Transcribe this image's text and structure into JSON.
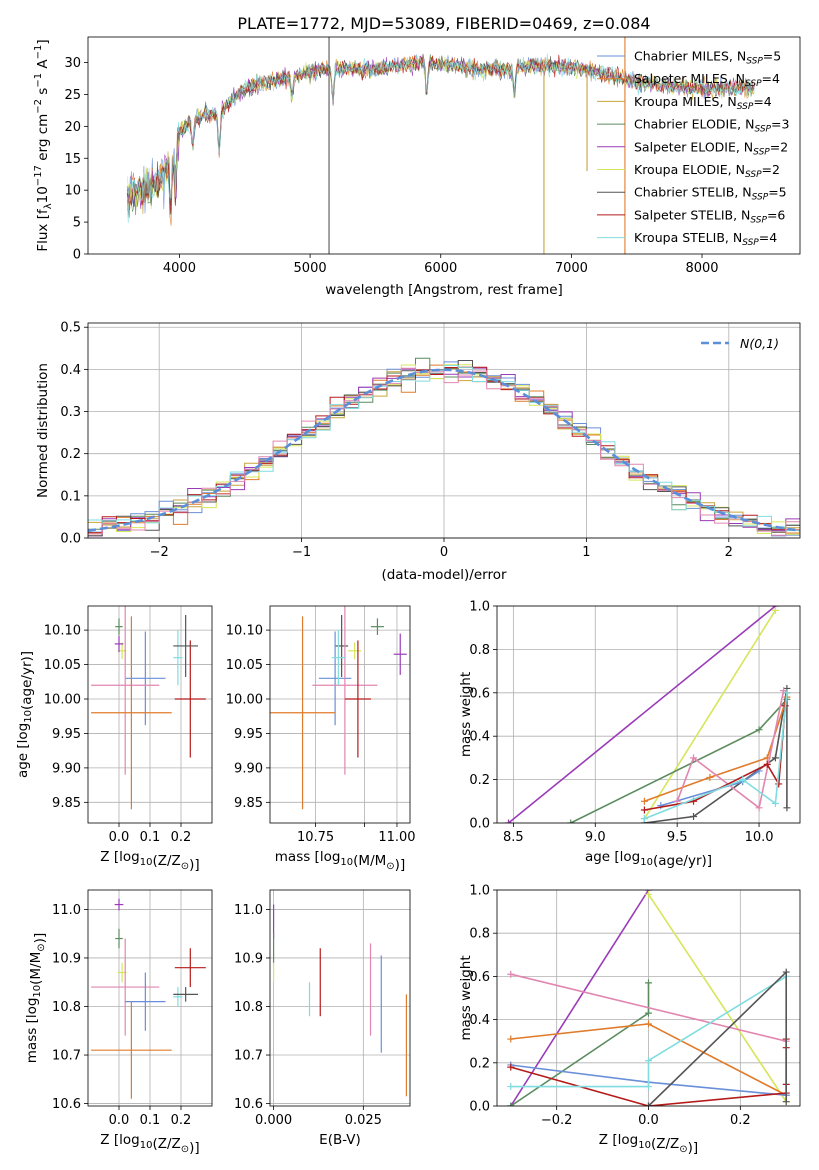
{
  "figure_title": "PLATE=1772, MJD=53089, FIBERID=0469, z=0.084",
  "colors": {
    "Chabrier MILES": "#6a8fd9",
    "Salpeter MILES": "#e07b2b",
    "Kroupa MILES": "#c9a23a",
    "Chabrier ELODIE": "#5b8c5f",
    "Salpeter ELODIE": "#9a3bb8",
    "Kroupa ELODIE": "#d6e65a",
    "Chabrier STELIB": "#555555",
    "Salpeter STELIB": "#b51a1a",
    "Kroupa STELIB": "#7fdde0",
    "pink": "#e286b0",
    "normal": "#5b8fd9"
  },
  "chart_data": [
    {
      "id": "spectrum",
      "type": "line",
      "xlabel": "wavelength [Angstrom, rest frame]",
      "ylabel": "Flux [f_λ10^-17 erg cm^-2 s^-1 A^-1]",
      "xlim": [
        3300,
        8750
      ],
      "ylim": [
        0,
        34
      ],
      "xticks": [
        4000,
        5000,
        6000,
        7000,
        8000
      ],
      "yticks": [
        0,
        5,
        10,
        15,
        20,
        25,
        30
      ],
      "grid": false,
      "legend_position": "right",
      "legend": [
        {
          "base": "Chabrier MILES, N",
          "sub": "SSP",
          "tail": "=5"
        },
        {
          "base": "Salpeter MILES, N",
          "sub": "SSP",
          "tail": "=4"
        },
        {
          "base": "Kroupa MILES, N",
          "sub": "SSP",
          "tail": "=4"
        },
        {
          "base": "Chabrier ELODIE, N",
          "sub": "SSP",
          "tail": "=3"
        },
        {
          "base": "Salpeter ELODIE, N",
          "sub": "SSP",
          "tail": "=2"
        },
        {
          "base": "Kroupa ELODIE, N",
          "sub": "SSP",
          "tail": "=2"
        },
        {
          "base": "Chabrier STELIB, N",
          "sub": "SSP",
          "tail": "=5"
        },
        {
          "base": "Salpeter STELIB, N",
          "sub": "SSP",
          "tail": "=6"
        },
        {
          "base": "Kroupa STELIB, N",
          "sub": "SSP",
          "tail": "=4"
        }
      ],
      "continuum": [
        [
          3600,
          9
        ],
        [
          3700,
          10
        ],
        [
          3800,
          11
        ],
        [
          3900,
          13
        ],
        [
          3950,
          17
        ],
        [
          4000,
          19
        ],
        [
          4100,
          21
        ],
        [
          4200,
          22
        ],
        [
          4300,
          22
        ],
        [
          4400,
          24
        ],
        [
          4500,
          26
        ],
        [
          4700,
          27
        ],
        [
          4900,
          28
        ],
        [
          5100,
          29
        ],
        [
          5300,
          29
        ],
        [
          5500,
          29
        ],
        [
          5700,
          29.5
        ],
        [
          5900,
          30
        ],
        [
          6100,
          29.5
        ],
        [
          6300,
          29
        ],
        [
          6500,
          29
        ],
        [
          6700,
          29.5
        ],
        [
          6900,
          29.5
        ],
        [
          7100,
          29
        ],
        [
          7300,
          28
        ],
        [
          7500,
          27
        ],
        [
          7700,
          26.5
        ],
        [
          7900,
          26
        ],
        [
          8100,
          26
        ],
        [
          8300,
          26
        ],
        [
          8400,
          26
        ]
      ],
      "absorption_lines": [
        [
          3934,
          9
        ],
        [
          3969,
          8
        ],
        [
          4102,
          4
        ],
        [
          4305,
          6
        ],
        [
          4861,
          3
        ],
        [
          5175,
          5
        ],
        [
          5893,
          5
        ],
        [
          6563,
          4
        ]
      ],
      "spikes": [
        {
          "x": 5145,
          "y0": 0,
          "y1": 34,
          "series": "Chabrier STELIB"
        },
        {
          "x": 6790,
          "y0": 0,
          "y1": 29,
          "series": "Kroupa MILES"
        },
        {
          "x": 7410,
          "y0": 0,
          "y1": 34,
          "series": "Salpeter MILES"
        },
        {
          "x": 7120,
          "y0": 13,
          "y1": 29,
          "series": "Kroupa MILES"
        }
      ]
    },
    {
      "id": "residuals",
      "type": "histogram",
      "xlabel": "(data-model)/error",
      "ylabel": "Normed distribution",
      "xlim": [
        -2.5,
        2.5
      ],
      "ylim": [
        0,
        0.51
      ],
      "xticks": [
        -2,
        -1,
        0,
        1,
        2
      ],
      "yticks": [
        0.0,
        0.1,
        0.2,
        0.3,
        0.4,
        0.5
      ],
      "grid": true,
      "bin_width": 0.1,
      "legend": "N(0,1)",
      "reference": {
        "type": "normal",
        "mean": 0,
        "sigma": 1
      }
    },
    {
      "id": "age_vs_Z",
      "type": "errorbar",
      "xlabel": "Z [log10(Z/Z⊙)]",
      "ylabel": "age [log10(age/yr)]",
      "xlim": [
        -0.1,
        0.3
      ],
      "ylim": [
        9.82,
        10.135
      ],
      "xticks": [
        0.0,
        0.1,
        0.2
      ],
      "yticks": [
        9.85,
        9.9,
        9.95,
        10.0,
        10.05,
        10.1
      ],
      "grid": true,
      "points": [
        {
          "series": "Chabrier ELODIE",
          "x": 0.0,
          "xerr": 0.012,
          "y": 10.105,
          "yerr": 0.012
        },
        {
          "series": "Kroupa ELODIE",
          "x": 0.01,
          "xerr": 0.014,
          "y": 10.07,
          "yerr": 0.012
        },
        {
          "series": "Salpeter ELODIE",
          "x": 0.0,
          "xerr": 0.014,
          "y": 10.08,
          "yerr": 0.012
        },
        {
          "series": "Chabrier MILES",
          "x": 0.085,
          "xerr": 0.065,
          "y": 10.03,
          "yerr": 0.068
        },
        {
          "series": "pink",
          "x": 0.02,
          "xerr": 0.11,
          "y": 10.02,
          "yerr": 0.13
        },
        {
          "series": "Salpeter MILES",
          "x": 0.04,
          "xerr": 0.13,
          "y": 9.98,
          "yerr": 0.14
        },
        {
          "series": "Salpeter STELIB",
          "x": 0.23,
          "xerr": 0.05,
          "y": 10.0,
          "yerr": 0.085
        },
        {
          "series": "Kroupa STELIB",
          "x": 0.19,
          "xerr": 0.015,
          "y": 10.06,
          "yerr": 0.04
        },
        {
          "series": "Chabrier STELIB",
          "x": 0.215,
          "xerr": 0.04,
          "y": 10.077,
          "yerr": 0.045
        }
      ]
    },
    {
      "id": "age_vs_mass",
      "type": "errorbar",
      "xlabel": "mass [log10(M/M⊙)]",
      "ylabel": "",
      "xlim": [
        10.61,
        11.04
      ],
      "ylim": [
        9.82,
        10.135
      ],
      "xticks": [
        10.75,
        10.9,
        11.0
      ],
      "xticklabels": [
        "10.75",
        "",
        "11.00"
      ],
      "yticks": [
        9.85,
        9.9,
        9.95,
        10.0,
        10.05,
        10.1
      ],
      "grid": true,
      "points": [
        {
          "series": "Chabrier ELODIE",
          "x": 10.94,
          "xerr": 0.02,
          "y": 10.105,
          "yerr": 0.012
        },
        {
          "series": "Salpeter ELODIE",
          "x": 11.01,
          "xerr": 0.02,
          "y": 10.065,
          "yerr": 0.03
        },
        {
          "series": "Kroupa ELODIE",
          "x": 10.87,
          "xerr": 0.02,
          "y": 10.07,
          "yerr": 0.012
        },
        {
          "series": "Chabrier STELIB",
          "x": 10.83,
          "xerr": 0.02,
          "y": 10.077,
          "yerr": 0.045
        },
        {
          "series": "Chabrier MILES",
          "x": 10.81,
          "xerr": 0.05,
          "y": 10.03,
          "yerr": 0.068
        },
        {
          "series": "pink",
          "x": 10.84,
          "xerr": 0.1,
          "y": 10.02,
          "yerr": 0.13
        },
        {
          "series": "Salpeter MILES",
          "x": 10.71,
          "xerr": 0.1,
          "y": 9.98,
          "yerr": 0.14
        },
        {
          "series": "Salpeter STELIB",
          "x": 10.88,
          "xerr": 0.04,
          "y": 10.0,
          "yerr": 0.085
        },
        {
          "series": "Kroupa STELIB",
          "x": 10.82,
          "xerr": 0.02,
          "y": 10.06,
          "yerr": 0.04
        }
      ]
    },
    {
      "id": "weight_vs_age",
      "type": "line",
      "xlabel": "age [log10(age/yr)]",
      "ylabel": "mass weight",
      "xlim": [
        8.4,
        10.25
      ],
      "ylim": [
        0,
        1
      ],
      "xticks": [
        8.5,
        9.0,
        9.5,
        10.0
      ],
      "yticks": [
        0.0,
        0.2,
        0.4,
        0.6,
        0.8,
        1.0
      ],
      "grid": true,
      "series": [
        {
          "name": "Salpeter ELODIE",
          "x": [
            8.47,
            10.1
          ],
          "y": [
            0.0,
            1.0
          ]
        },
        {
          "name": "Kroupa ELODIE",
          "x": [
            9.3,
            10.1
          ],
          "y": [
            0.02,
            0.98
          ]
        },
        {
          "name": "Chabrier ELODIE",
          "x": [
            8.85,
            10.0,
            10.17
          ],
          "y": [
            0.0,
            0.43,
            0.57
          ]
        },
        {
          "name": "Chabrier STELIB",
          "x": [
            9.3,
            9.6,
            10.1,
            10.17,
            10.17
          ],
          "y": [
            0.0,
            0.03,
            0.3,
            0.62,
            0.07
          ]
        },
        {
          "name": "Salpeter MILES",
          "x": [
            9.3,
            9.7,
            10.05,
            10.17
          ],
          "y": [
            0.1,
            0.21,
            0.3,
            0.58
          ]
        },
        {
          "name": "Chabrier MILES",
          "x": [
            9.4,
            9.9,
            10.0
          ],
          "y": [
            0.08,
            0.19,
            0.24
          ]
        },
        {
          "name": "pink",
          "x": [
            9.5,
            9.6,
            10.0,
            10.15
          ],
          "y": [
            0.1,
            0.3,
            0.07,
            0.61
          ]
        },
        {
          "name": "Salpeter STELIB",
          "x": [
            9.3,
            9.6,
            10.05,
            10.12,
            10.16,
            10.17
          ],
          "y": [
            0.06,
            0.1,
            0.27,
            0.18,
            0.54,
            0.6
          ]
        },
        {
          "name": "Kroupa STELIB",
          "x": [
            9.3,
            9.9,
            10.1,
            10.17
          ],
          "y": [
            0.02,
            0.2,
            0.09,
            0.6
          ]
        }
      ]
    },
    {
      "id": "mass_vs_Z",
      "type": "errorbar",
      "xlabel": "Z [log10(Z/Z⊙)]",
      "ylabel": "mass [log10(M/M⊙)]",
      "xlim": [
        -0.1,
        0.3
      ],
      "ylim": [
        10.595,
        11.04
      ],
      "xticks": [
        0.0,
        0.1,
        0.2
      ],
      "yticks": [
        10.6,
        10.7,
        10.8,
        10.9,
        11.0
      ],
      "grid": true,
      "points": [
        {
          "series": "Salpeter ELODIE",
          "x": 0.0,
          "xerr": 0.014,
          "y": 11.01,
          "yerr": 0.012
        },
        {
          "series": "Chabrier ELODIE",
          "x": 0.0,
          "xerr": 0.012,
          "y": 10.94,
          "yerr": 0.02
        },
        {
          "series": "Kroupa ELODIE",
          "x": 0.01,
          "xerr": 0.014,
          "y": 10.87,
          "yerr": 0.02
        },
        {
          "series": "pink",
          "x": 0.02,
          "xerr": 0.11,
          "y": 10.84,
          "yerr": 0.1
        },
        {
          "series": "Chabrier MILES",
          "x": 0.085,
          "xerr": 0.065,
          "y": 10.81,
          "yerr": 0.06
        },
        {
          "series": "Salpeter MILES",
          "x": 0.04,
          "xerr": 0.13,
          "y": 10.71,
          "yerr": 0.1
        },
        {
          "series": "Salpeter STELIB",
          "x": 0.23,
          "xerr": 0.05,
          "y": 10.88,
          "yerr": 0.04
        },
        {
          "series": "Kroupa STELIB",
          "x": 0.19,
          "xerr": 0.015,
          "y": 10.82,
          "yerr": 0.02
        },
        {
          "series": "Chabrier STELIB",
          "x": 0.215,
          "xerr": 0.04,
          "y": 10.825,
          "yerr": 0.015
        }
      ]
    },
    {
      "id": "mass_vs_ebv",
      "type": "errorbar",
      "xlabel": "E(B-V)",
      "ylabel": "",
      "xlim": [
        -0.001,
        0.038
      ],
      "ylim": [
        10.595,
        11.04
      ],
      "xticks": [
        0.0,
        0.025
      ],
      "xticklabels": [
        "0.000",
        "0.025"
      ],
      "yticks": [
        10.6,
        10.7,
        10.8,
        10.9,
        11.0
      ],
      "grid": true,
      "points": [
        {
          "series": "Salpeter ELODIE",
          "x": 0.0,
          "xerr": 0,
          "y": 10.975,
          "yerr": 0.035
        },
        {
          "series": "Chabrier ELODIE",
          "x": 0.0,
          "xerr": 0,
          "y": 10.92,
          "yerr": 0.03
        },
        {
          "series": "Kroupa ELODIE",
          "x": 0.0,
          "xerr": 0,
          "y": 10.87,
          "yerr": 0.02
        },
        {
          "series": "Kroupa STELIB",
          "x": 0.01,
          "xerr": 0,
          "y": 10.815,
          "yerr": 0.035
        },
        {
          "series": "Salpeter STELIB",
          "x": 0.013,
          "xerr": 0,
          "y": 10.85,
          "yerr": 0.07
        },
        {
          "series": "pink",
          "x": 0.027,
          "xerr": 0,
          "y": 10.835,
          "yerr": 0.095
        },
        {
          "series": "Chabrier MILES",
          "x": 0.03,
          "xerr": 0,
          "y": 10.805,
          "yerr": 0.1
        },
        {
          "series": "Salpeter MILES",
          "x": 0.037,
          "xerr": 0,
          "y": 10.72,
          "yerr": 0.105
        }
      ]
    },
    {
      "id": "weight_vs_Z",
      "type": "line",
      "xlabel": "Z [log10(Z/Z⊙)]",
      "ylabel": "mass weight",
      "xlim": [
        -0.33,
        0.33
      ],
      "ylim": [
        0,
        1
      ],
      "xticks": [
        -0.2,
        0.0,
        0.2
      ],
      "yticks": [
        0.0,
        0.2,
        0.4,
        0.6,
        0.8,
        1.0
      ],
      "grid": true,
      "series": [
        {
          "name": "Salpeter ELODIE",
          "x": [
            -0.3,
            0.0
          ],
          "y": [
            0.0,
            1.0
          ]
        },
        {
          "name": "Kroupa ELODIE",
          "x": [
            0.0,
            0.3
          ],
          "y": [
            0.98,
            0.02
          ]
        },
        {
          "name": "Chabrier ELODIE",
          "x": [
            -0.3,
            0.0,
            0.0
          ],
          "y": [
            0.0,
            0.43,
            0.57
          ]
        },
        {
          "name": "pink",
          "x": [
            -0.3,
            0.3
          ],
          "y": [
            0.61,
            0.3
          ]
        },
        {
          "name": "Salpeter MILES",
          "x": [
            -0.3,
            0.0,
            0.3
          ],
          "y": [
            0.31,
            0.38,
            0.05
          ]
        },
        {
          "name": "Chabrier MILES",
          "x": [
            -0.3,
            0.0,
            0.3
          ],
          "y": [
            0.19,
            0.11,
            0.05
          ]
        },
        {
          "name": "Salpeter STELIB",
          "x": [
            -0.3,
            0.0,
            0.3,
            0.3,
            0.3,
            0.3
          ],
          "y": [
            0.18,
            0.0,
            0.06,
            0.1,
            0.27,
            0.31
          ]
        },
        {
          "name": "Kroupa STELIB",
          "x": [
            -0.3,
            0.0,
            0.0,
            0.3
          ],
          "y": [
            0.09,
            0.09,
            0.21,
            0.6
          ]
        },
        {
          "name": "Chabrier STELIB",
          "x": [
            0.0,
            0.3,
            0.3
          ],
          "y": [
            0.0,
            0.62,
            0.02
          ]
        }
      ]
    }
  ]
}
